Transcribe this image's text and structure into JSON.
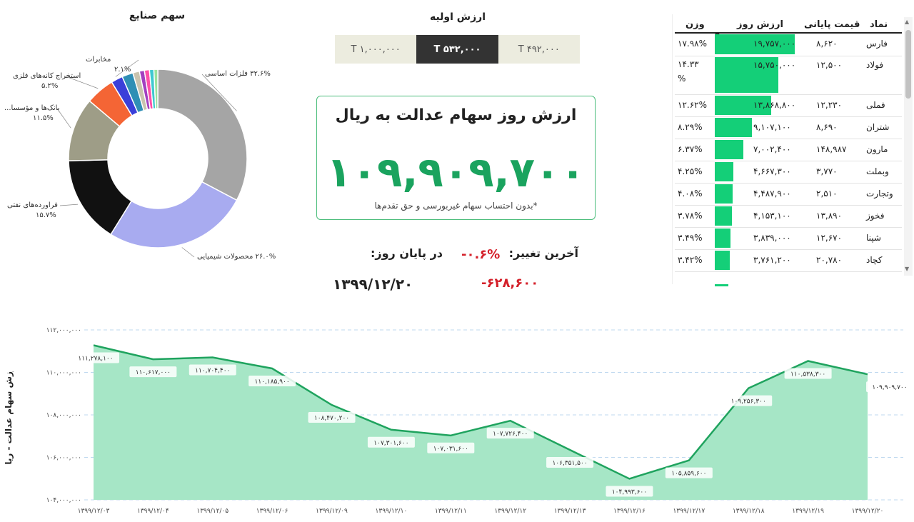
{
  "donut": {
    "title": "سهم صنایع",
    "segments": [
      {
        "label": "فلزات اساسی",
        "pct": "۳۲.۶%",
        "value": 32.6,
        "color": "#a5a5a5"
      },
      {
        "label": "محصولات شیمیایی",
        "pct": "۲۶.۰%",
        "value": 26.0,
        "color": "#a8abf0"
      },
      {
        "label": "فراورده‌های نفتی",
        "pct": "۱۵.۷%",
        "value": 15.7,
        "color": "#111111"
      },
      {
        "label": "بانک‌ها و مؤسسا...",
        "pct": "۱۱.۵%",
        "value": 11.5,
        "color": "#9e9d87"
      },
      {
        "label": "استخراج کانه‌های فلزی",
        "pct": "۵.۲%",
        "value": 5.2,
        "color": "#f46535"
      },
      {
        "label": "مخابرات",
        "pct": "۲.۱%",
        "value": 2.1,
        "color": "#3b3fd9"
      },
      {
        "label": "",
        "pct": "",
        "value": 2.0,
        "color": "#2f8fb5"
      },
      {
        "label": "",
        "pct": "",
        "value": 1.2,
        "color": "#c9c3ae"
      },
      {
        "label": "",
        "pct": "",
        "value": 0.9,
        "color": "#a23fc0"
      },
      {
        "label": "",
        "pct": "",
        "value": 0.9,
        "color": "#ff4fa8"
      },
      {
        "label": "",
        "pct": "",
        "value": 0.8,
        "color": "#3fc8d0"
      },
      {
        "label": "",
        "pct": "",
        "value": 0.7,
        "color": "#9be29e"
      }
    ]
  },
  "initial": {
    "title": "ارزش اولیه",
    "buttons": [
      "T ۱,۰۰۰,۰۰۰",
      "T ۵۳۲,۰۰۰",
      "T ۴۹۲,۰۰۰"
    ],
    "active_index": 1
  },
  "card": {
    "title": "ارزش روز سهام عدالت به ریال",
    "value": "۱۰۹,۹۰۹,۷۰۰",
    "note": "*بدون احتساب سهام غیربورسی و حق تقدم‌ها"
  },
  "change": {
    "label": "آخرین تغییر:",
    "percent": "-۰.۶%",
    "amount": "-۶۲۸,۶۰۰"
  },
  "end_day": {
    "label": "در پایان روز:",
    "date": "۱۳۹۹/۱۲/۲۰"
  },
  "table": {
    "headers": {
      "symbol": "نماد",
      "final_price": "قیمت پایانی",
      "day_value": "ارزش روز",
      "weight": "وزن"
    },
    "max_value": 19757000,
    "rows": [
      {
        "symbol": "فارس",
        "final_price": "۸,۶۲۰",
        "day_value": "۱۹,۷۵۷,۰۰۰",
        "weight": "۱۷.۹۸%",
        "value": 19757000
      },
      {
        "symbol": "فولاد",
        "final_price": "۱۲,۵۰۰",
        "day_value": "۱۵,۷۵۰,۰۰۰",
        "weight": "۱۴.۳۳ %",
        "value": 15750000
      },
      {
        "symbol": "فملی",
        "final_price": "۱۲,۲۳۰",
        "day_value": "۱۳,۸۶۸,۸۰۰",
        "weight": "۱۲.۶۲%",
        "value": 13868800
      },
      {
        "symbol": "شتران",
        "final_price": "۸,۶۹۰",
        "day_value": "۹,۱۰۷,۱۰۰",
        "weight": "۸.۲۹%",
        "value": 9107100
      },
      {
        "symbol": "مارون",
        "final_price": "۱۴۸,۹۸۷",
        "day_value": "۷,۰۰۲,۴۰۰",
        "weight": "۶.۳۷%",
        "value": 7002400
      },
      {
        "symbol": "وبملت",
        "final_price": "۳,۷۷۰",
        "day_value": "۴,۶۶۷,۳۰۰",
        "weight": "۴.۲۵%",
        "value": 4667300
      },
      {
        "symbol": "وتجارت",
        "final_price": "۲,۵۱۰",
        "day_value": "۴,۴۸۷,۹۰۰",
        "weight": "۴.۰۸%",
        "value": 4487900
      },
      {
        "symbol": "فخوز",
        "final_price": "۱۳,۸۹۰",
        "day_value": "۴,۱۵۳,۱۰۰",
        "weight": "۳.۷۸%",
        "value": 4153100
      },
      {
        "symbol": "شپنا",
        "final_price": "۱۲,۶۷۰",
        "day_value": "۳,۸۳۹,۰۰۰",
        "weight": "۳.۴۹%",
        "value": 3839000
      },
      {
        "symbol": "کچاد",
        "final_price": "۲۰,۷۸۰",
        "day_value": "۳,۷۶۱,۲۰۰",
        "weight": "۳.۴۲%",
        "value": 3761200
      }
    ]
  },
  "chart_data": {
    "type": "area",
    "ylabel": "ارزش سهام عدالت - ریال",
    "ylim": [
      104000000,
      112000000
    ],
    "yticks": [
      "۱۰۴,۰۰۰,۰۰۰",
      "۱۰۶,۰۰۰,۰۰۰",
      "۱۰۸,۰۰۰,۰۰۰",
      "۱۱۰,۰۰۰,۰۰۰",
      "۱۱۲,۰۰۰,۰۰۰"
    ],
    "ytick_values": [
      104000000,
      106000000,
      108000000,
      110000000,
      112000000
    ],
    "categories": [
      "۱۳۹۹/۱۲/۰۳",
      "۱۳۹۹/۱۲/۰۴",
      "۱۳۹۹/۱۲/۰۵",
      "۱۳۹۹/۱۲/۰۶",
      "۱۳۹۹/۱۲/۰۹",
      "۱۳۹۹/۱۲/۱۰",
      "۱۳۹۹/۱۲/۱۱",
      "۱۳۹۹/۱۲/۱۲",
      "۱۳۹۹/۱۲/۱۳",
      "۱۳۹۹/۱۲/۱۶",
      "۱۳۹۹/۱۲/۱۷",
      "۱۳۹۹/۱۲/۱۸",
      "۱۳۹۹/۱۲/۱۹",
      "۱۳۹۹/۱۲/۲۰"
    ],
    "values": [
      111278100,
      110617000,
      110704400,
      110185900,
      108470200,
      107301600,
      107031600,
      107726400,
      106351500,
      104993600,
      105859600,
      109256300,
      110538300,
      109909700
    ],
    "data_labels": [
      "۱۱۱,۲۷۸,۱۰۰",
      "۱۱۰,۶۱۷,۰۰۰",
      "۱۱۰,۷۰۴,۴۰۰",
      "۱۱۰,۱۸۵,۹۰۰",
      "۱۰۸,۴۷۰,۲۰۰",
      "۱۰۷,۳۰۱,۶۰۰",
      "۱۰۷,۰۳۱,۶۰۰",
      "۱۰۷,۷۲۶,۴۰۰",
      "۱۰۶,۳۵۱,۵۰۰",
      "۱۰۴,۹۹۳,۶۰۰",
      "۱۰۵,۸۵۹,۶۰۰",
      "۱۰۹,۲۵۶,۳۰۰",
      "۱۱۰,۵۳۸,۳۰۰",
      "۱۰۹,۹۰۹,۷۰۰"
    ],
    "grid": true,
    "colors": {
      "line": "#1fa35e",
      "fill": "#a6e6c6"
    }
  }
}
